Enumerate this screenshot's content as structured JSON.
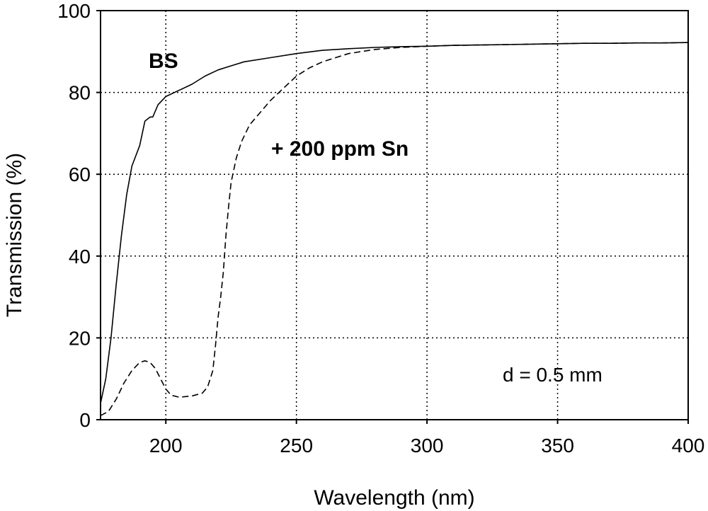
{
  "chart_data": {
    "type": "line",
    "title": "",
    "xlabel": "Wavelength (nm)",
    "ylabel": "Transmission (%)",
    "xlim": [
      175,
      400
    ],
    "ylim": [
      0,
      100
    ],
    "xticks": [
      200,
      250,
      300,
      350,
      400
    ],
    "yticks": [
      0,
      20,
      40,
      60,
      80,
      100
    ],
    "grid": true,
    "grid_style": "dotted",
    "legend": "none",
    "annotations": [
      {
        "text": "BS",
        "near": "series-0"
      },
      {
        "text": "+ 200 ppm Sn",
        "near": "series-1"
      },
      {
        "text": "d = 0.5 mm",
        "near": "bottom-right"
      }
    ],
    "series": [
      {
        "line_style": "solid",
        "color": "#000000",
        "points": [
          [
            175,
            4
          ],
          [
            177,
            10
          ],
          [
            179,
            20
          ],
          [
            181,
            33
          ],
          [
            183,
            45
          ],
          [
            185,
            55
          ],
          [
            187,
            62
          ],
          [
            190,
            67
          ],
          [
            192,
            73
          ],
          [
            194,
            74
          ],
          [
            195,
            74
          ],
          [
            197,
            77
          ],
          [
            200,
            79
          ],
          [
            205,
            80.5
          ],
          [
            210,
            82
          ],
          [
            215,
            84
          ],
          [
            220,
            85.5
          ],
          [
            225,
            86.5
          ],
          [
            230,
            87.5
          ],
          [
            240,
            88.5
          ],
          [
            250,
            89.5
          ],
          [
            260,
            90.3
          ],
          [
            270,
            90.7
          ],
          [
            280,
            91
          ],
          [
            290,
            91.2
          ],
          [
            300,
            91.3
          ],
          [
            310,
            91.5
          ],
          [
            320,
            91.6
          ],
          [
            330,
            91.7
          ],
          [
            340,
            91.8
          ],
          [
            350,
            91.9
          ],
          [
            360,
            92
          ],
          [
            370,
            92
          ],
          [
            380,
            92.1
          ],
          [
            390,
            92.1
          ],
          [
            400,
            92.2
          ]
        ]
      },
      {
        "line_style": "dashed",
        "color": "#000000",
        "points": [
          [
            175,
            1
          ],
          [
            178,
            2
          ],
          [
            181,
            5
          ],
          [
            184,
            9
          ],
          [
            187,
            12
          ],
          [
            190,
            14
          ],
          [
            192,
            14.4
          ],
          [
            194,
            14
          ],
          [
            196,
            12.5
          ],
          [
            198,
            10
          ],
          [
            200,
            7.5
          ],
          [
            202,
            6
          ],
          [
            205,
            5.5
          ],
          [
            210,
            5.8
          ],
          [
            214,
            6.5
          ],
          [
            216,
            8
          ],
          [
            218,
            12
          ],
          [
            219,
            18
          ],
          [
            220,
            25
          ],
          [
            221,
            30
          ],
          [
            222,
            36
          ],
          [
            223,
            45
          ],
          [
            224,
            52
          ],
          [
            225,
            58
          ],
          [
            227,
            64
          ],
          [
            229,
            68
          ],
          [
            232,
            72
          ],
          [
            236,
            75
          ],
          [
            240,
            78
          ],
          [
            245,
            81
          ],
          [
            250,
            84
          ],
          [
            255,
            86
          ],
          [
            260,
            87.5
          ],
          [
            265,
            88.5
          ],
          [
            270,
            89.5
          ],
          [
            280,
            90.5
          ],
          [
            290,
            91
          ],
          [
            300,
            91.3
          ],
          [
            310,
            91.5
          ],
          [
            320,
            91.6
          ],
          [
            330,
            91.7
          ],
          [
            340,
            91.8
          ],
          [
            350,
            91.9
          ],
          [
            360,
            92
          ],
          [
            370,
            92
          ],
          [
            380,
            92.1
          ],
          [
            390,
            92.1
          ],
          [
            400,
            92.2
          ]
        ]
      }
    ]
  }
}
